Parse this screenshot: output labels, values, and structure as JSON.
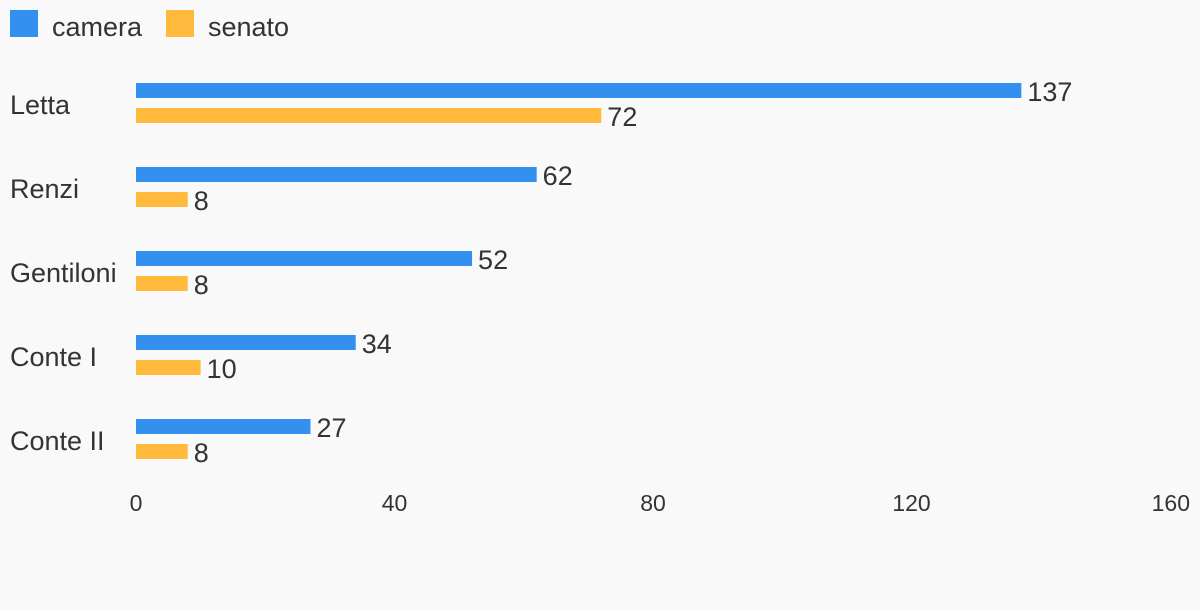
{
  "chart_data": {
    "type": "bar",
    "orientation": "horizontal",
    "categories": [
      "Letta",
      "Renzi",
      "Gentiloni",
      "Conte I",
      "Conte II"
    ],
    "series": [
      {
        "name": "camera",
        "color": "#3390ee",
        "values": [
          137,
          62,
          52,
          34,
          27
        ]
      },
      {
        "name": "senato",
        "color": "#ffba3d",
        "values": [
          72,
          8,
          8,
          10,
          8
        ]
      }
    ],
    "xlim": [
      0,
      160
    ],
    "xticks": [
      0,
      40,
      80,
      120,
      160
    ],
    "grid": false,
    "legend": "top-left",
    "data_labels": true
  }
}
